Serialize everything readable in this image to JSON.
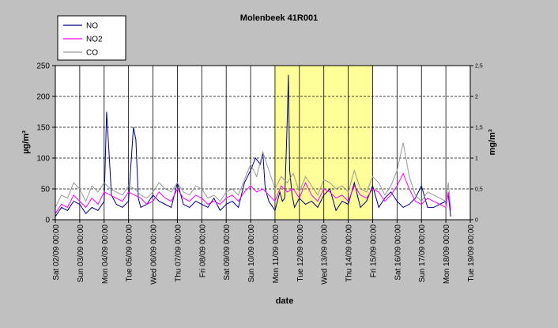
{
  "chart_data": {
    "type": "line",
    "title": "Molenbeek 41R001",
    "xlabel": "date",
    "ylabel_left": "µg/m³",
    "ylabel_right": "mg/m³",
    "ylim_left": [
      0,
      250
    ],
    "ylim_right": [
      0,
      2.5
    ],
    "yticks_left": [
      "0",
      "50",
      "100",
      "150",
      "200",
      "250"
    ],
    "yticks_right": [
      "0",
      "0,5",
      "1",
      "1,5",
      "2",
      "2,5"
    ],
    "x_tick_labels": [
      "Sat 02/09 00:00",
      "Sun 03/09 00:00",
      "Mon 04/09 00:00",
      "Tue 05/09 00:00",
      "Wed 06/09 00:00",
      "Thu 07/09 00:00",
      "Fri 08/09 00:00",
      "Sat 09/09 00:00",
      "Sun 10/09 00:00",
      "Mon 11/09 00:00",
      "Tue 12/09 00:00",
      "Wed 13/09 00:00",
      "Thu 14/09 00:00",
      "Fri 15/09 00:00",
      "Sat 16/09 00:00",
      "Sun 17/09 00:00",
      "Mon 18/09 00:00",
      "Tue 19/09 00:00"
    ],
    "highlight_range_days": [
      9,
      13
    ],
    "highlight_color": "#ffff99",
    "grid": "horizontal dashed + vertical day lines",
    "legend": "top-left",
    "series": [
      {
        "name": "NO",
        "axis": "left",
        "color": "#000080",
        "day": [
          0,
          0.25,
          0.5,
          0.75,
          1,
          1.25,
          1.5,
          1.75,
          2,
          2.1,
          2.2,
          2.3,
          2.5,
          2.75,
          3,
          3.2,
          3.3,
          3.4,
          3.5,
          3.75,
          4,
          4.25,
          4.5,
          4.75,
          5,
          5.25,
          5.5,
          5.75,
          6,
          6.25,
          6.5,
          6.75,
          7,
          7.25,
          7.5,
          7.75,
          8,
          8.2,
          8.4,
          8.5,
          8.6,
          8.75,
          9,
          9.2,
          9.3,
          9.4,
          9.5,
          9.55,
          9.6,
          9.7,
          9.8,
          10,
          10.25,
          10.5,
          10.75,
          11,
          11.25,
          11.5,
          11.75,
          12,
          12.25,
          12.5,
          12.75,
          13,
          13.25,
          13.5,
          13.75,
          14,
          14.25,
          14.5,
          14.75,
          15,
          15.25,
          15.5,
          15.75,
          16,
          16.1,
          16.2
        ],
        "values": [
          5,
          20,
          15,
          30,
          25,
          10,
          20,
          15,
          30,
          175,
          110,
          40,
          25,
          20,
          30,
          150,
          130,
          35,
          20,
          25,
          40,
          30,
          25,
          20,
          60,
          25,
          20,
          30,
          25,
          20,
          35,
          15,
          25,
          30,
          20,
          60,
          80,
          100,
          90,
          110,
          50,
          30,
          15,
          45,
          30,
          35,
          160,
          235,
          80,
          40,
          20,
          35,
          25,
          30,
          20,
          40,
          50,
          15,
          30,
          25,
          60,
          20,
          30,
          55,
          20,
          35,
          45,
          30,
          20,
          25,
          35,
          55,
          20,
          20,
          25,
          30,
          40,
          5
        ]
      },
      {
        "name": "NO2",
        "axis": "left",
        "color": "#ff00ff",
        "day": [
          0,
          0.25,
          0.5,
          0.75,
          1,
          1.25,
          1.5,
          1.75,
          2,
          2.25,
          2.5,
          2.75,
          3,
          3.25,
          3.5,
          3.75,
          4,
          4.25,
          4.5,
          4.75,
          5,
          5.25,
          5.5,
          5.75,
          6,
          6.25,
          6.5,
          6.75,
          7,
          7.25,
          7.5,
          7.75,
          8,
          8.25,
          8.5,
          8.75,
          9,
          9.25,
          9.5,
          9.75,
          10,
          10.25,
          10.5,
          10.75,
          11,
          11.25,
          11.5,
          11.75,
          12,
          12.25,
          12.5,
          12.75,
          13,
          13.25,
          13.5,
          13.75,
          14,
          14.25,
          14.5,
          14.75,
          15,
          15.25,
          15.5,
          15.75,
          16,
          16.1,
          16.2
        ],
        "values": [
          10,
          25,
          20,
          40,
          30,
          20,
          35,
          25,
          45,
          40,
          35,
          30,
          45,
          40,
          35,
          25,
          30,
          45,
          35,
          30,
          50,
          35,
          30,
          40,
          35,
          25,
          30,
          25,
          35,
          40,
          30,
          45,
          55,
          45,
          50,
          40,
          30,
          55,
          45,
          50,
          35,
          60,
          40,
          30,
          50,
          45,
          35,
          40,
          30,
          55,
          40,
          35,
          50,
          45,
          30,
          40,
          55,
          75,
          50,
          30,
          25,
          35,
          30,
          25,
          20,
          45,
          15
        ]
      },
      {
        "name": "CO",
        "axis": "right",
        "color": "#999999",
        "day": [
          0,
          0.25,
          0.5,
          0.75,
          1,
          1.25,
          1.5,
          1.75,
          2,
          2.25,
          2.5,
          2.75,
          3,
          3.25,
          3.5,
          3.75,
          4,
          4.25,
          4.5,
          4.75,
          5,
          5.25,
          5.5,
          5.75,
          6,
          6.25,
          6.5,
          6.75,
          7,
          7.25,
          7.5,
          7.75,
          8,
          8.25,
          8.5,
          8.75,
          9,
          9.25,
          9.5,
          9.75,
          10,
          10.25,
          10.5,
          10.75,
          11,
          11.25,
          11.5,
          11.75,
          12,
          12.25,
          12.5,
          12.75,
          13,
          13.25,
          13.5,
          13.75,
          14,
          14.25,
          14.5,
          14.75,
          15,
          15.25,
          15.5,
          15.75,
          16,
          16.1,
          16.2
        ],
        "values": [
          0.2,
          0.4,
          0.35,
          0.6,
          0.5,
          0.3,
          0.55,
          0.45,
          0.6,
          0.5,
          0.45,
          0.4,
          0.55,
          0.5,
          0.4,
          0.35,
          0.45,
          0.6,
          0.5,
          0.45,
          0.6,
          0.45,
          0.4,
          0.55,
          0.5,
          0.35,
          0.4,
          0.3,
          0.45,
          0.5,
          0.4,
          0.65,
          0.9,
          0.7,
          1.1,
          0.8,
          0.5,
          0.7,
          0.6,
          0.75,
          0.45,
          0.7,
          0.55,
          0.4,
          0.65,
          0.6,
          0.5,
          0.55,
          0.45,
          0.8,
          0.5,
          0.45,
          0.7,
          0.6,
          0.4,
          0.55,
          0.8,
          1.25,
          0.7,
          0.4,
          0.3,
          0.45,
          0.4,
          0.35,
          0.3,
          0.6,
          0.2
        ]
      }
    ]
  }
}
